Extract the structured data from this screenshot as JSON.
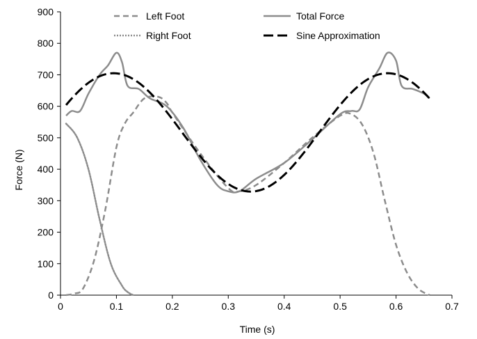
{
  "chart_data": {
    "type": "line",
    "title": "",
    "xlabel": "Time (s)",
    "ylabel": "Force (N)",
    "xlim": [
      0,
      0.7
    ],
    "ylim": [
      0,
      900
    ],
    "xticks": [
      "0",
      "0.1",
      "0.2",
      "0.3",
      "0.4",
      "0.5",
      "0.6",
      "0.7"
    ],
    "yticks": [
      "0",
      "100",
      "200",
      "300",
      "400",
      "500",
      "600",
      "700",
      "800",
      "900"
    ],
    "grid": false,
    "legend_position": "top",
    "series": [
      {
        "name": "Left Foot",
        "style": "dashed",
        "color": "#8c8c8c",
        "x": [
          0.01,
          0.025,
          0.04,
          0.06,
          0.08,
          0.1,
          0.115,
          0.13,
          0.15,
          0.175,
          0.19,
          0.2,
          0.25,
          0.3,
          0.32,
          0.35,
          0.4,
          0.45,
          0.5,
          0.52,
          0.54,
          0.56,
          0.58,
          0.6,
          0.62,
          0.64,
          0.66
        ],
        "y": [
          0,
          5,
          20,
          110,
          270,
          470,
          545,
          580,
          625,
          630,
          610,
          580,
          450,
          340,
          330,
          350,
          420,
          500,
          570,
          575,
          540,
          450,
          300,
          160,
          70,
          20,
          0
        ]
      },
      {
        "name": "Right Foot",
        "style": "dotted",
        "color": "#8c8c8c",
        "x": [
          0.01,
          0.03,
          0.05,
          0.07,
          0.09,
          0.11,
          0.12,
          0.13
        ],
        "y": [
          545,
          500,
          400,
          240,
          100,
          30,
          10,
          0
        ]
      },
      {
        "name": "Total Force",
        "style": "solid",
        "color": "#8c8c8c",
        "x": [
          0.01,
          0.02,
          0.035,
          0.05,
          0.07,
          0.085,
          0.1,
          0.11,
          0.12,
          0.14,
          0.16,
          0.19,
          0.22,
          0.25,
          0.28,
          0.3,
          0.32,
          0.35,
          0.4,
          0.45,
          0.5,
          0.52,
          0.535,
          0.55,
          0.57,
          0.585,
          0.6,
          0.61,
          0.63,
          0.65,
          0.66
        ],
        "y": [
          570,
          585,
          585,
          640,
          700,
          730,
          770,
          740,
          665,
          655,
          625,
          600,
          530,
          430,
          350,
          330,
          330,
          370,
          420,
          495,
          575,
          585,
          590,
          660,
          720,
          770,
          745,
          665,
          655,
          640,
          625
        ]
      },
      {
        "name": "Sine Approximation",
        "style": "long-dashed",
        "color": "#000000",
        "amplitude": 188,
        "offset": 517,
        "period": 0.49,
        "peak_time": 0.095,
        "x_range": [
          0.01,
          0.66
        ]
      }
    ]
  }
}
